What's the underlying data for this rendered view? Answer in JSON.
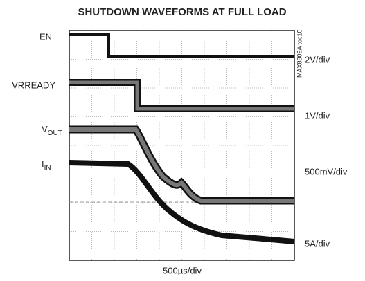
{
  "title": "SHUTDOWN WAVEFORMS AT FULL LOAD",
  "figure_id": "MAX8809A toc10",
  "timebase": "500µs/div",
  "channels": [
    {
      "label": "EN",
      "scale": "2V/div"
    },
    {
      "label": "VRREADY",
      "scale": "1V/div"
    },
    {
      "label": "V",
      "label_sub": "OUT",
      "scale": "500mV/div"
    },
    {
      "label": "I",
      "label_sub": "IN",
      "scale": "5A/div"
    }
  ]
}
